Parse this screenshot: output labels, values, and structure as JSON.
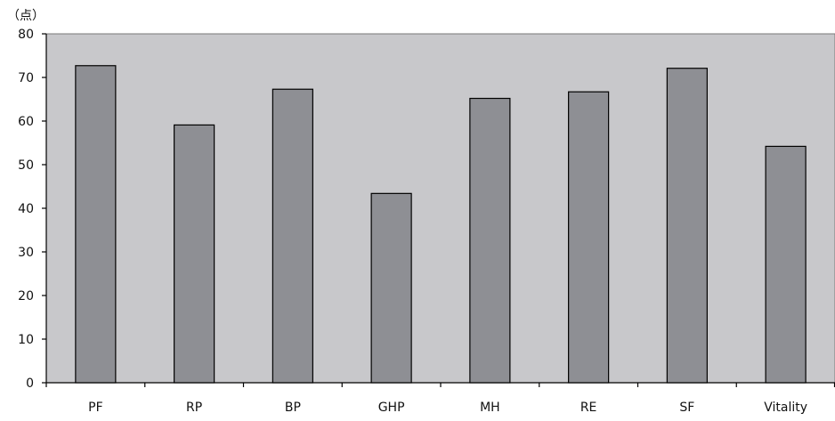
{
  "chart_data": {
    "type": "bar",
    "unit_label": "（点）",
    "categories": [
      "PF",
      "RP",
      "BP",
      "GHP",
      "MH",
      "RE",
      "SF",
      "Vitality"
    ],
    "values": [
      72.7,
      59.1,
      67.3,
      43.4,
      65.2,
      66.7,
      72.1,
      54.2
    ],
    "ylim": [
      0,
      80
    ],
    "yticks": [
      0,
      10,
      20,
      30,
      40,
      50,
      60,
      70,
      80
    ],
    "grid": false,
    "legend": "none",
    "colors": {
      "plot_background": "#c8c8cb",
      "bar_fill": "#8e8f94",
      "bar_stroke": "#000000",
      "axis": "#000000"
    }
  }
}
